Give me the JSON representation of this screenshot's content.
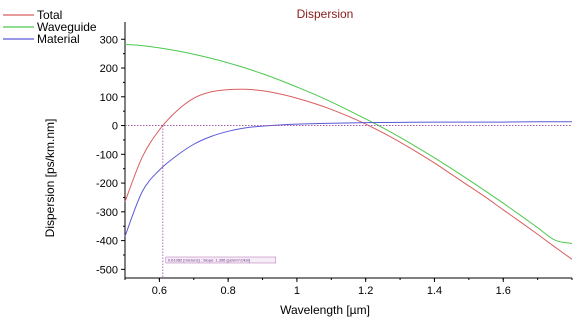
{
  "chart_data": {
    "type": "line",
    "title": "Dispersion",
    "xlabel": "Wavelength [µm]",
    "ylabel": "Dispersion [ps/km.nm]",
    "xlim": [
      0.5,
      1.8
    ],
    "ylim": [
      -530,
      360
    ],
    "x_ticks": [
      0.6,
      0.8,
      1,
      1.2,
      1.4,
      1.6
    ],
    "x_tick_labels": [
      "0.6",
      "0.8",
      "1",
      "1.2",
      "1.4",
      "1.6"
    ],
    "y_ticks": [
      300,
      200,
      100,
      0,
      -100,
      -200,
      -300,
      -400,
      -500
    ],
    "y_tick_labels": [
      "300",
      "200",
      "100",
      "0",
      "-100",
      "-200",
      "-300",
      "-400",
      "-500"
    ],
    "legend_position": "top-left",
    "series": [
      {
        "name": "Total",
        "color": "#d95f5f",
        "x": [
          0.5,
          0.55,
          0.6,
          0.65,
          0.7,
          0.75,
          0.8,
          0.85,
          0.9,
          0.95,
          1.0,
          1.05,
          1.1,
          1.15,
          1.2,
          1.25,
          1.3,
          1.35,
          1.4,
          1.45,
          1.5,
          1.55,
          1.6,
          1.65,
          1.7,
          1.75,
          1.8
        ],
        "y": [
          -265,
          -110,
          -15,
          50,
          95,
          117,
          125,
          126,
          121,
          110,
          95,
          77,
          56,
          32,
          5,
          -25,
          -58,
          -93,
          -130,
          -170,
          -210,
          -250,
          -293,
          -335,
          -378,
          -422,
          -465
        ]
      },
      {
        "name": "Waveguide",
        "color": "#4cc94c",
        "x": [
          0.5,
          0.55,
          0.6,
          0.65,
          0.7,
          0.75,
          0.8,
          0.85,
          0.9,
          0.95,
          1.0,
          1.05,
          1.1,
          1.15,
          1.2,
          1.25,
          1.3,
          1.35,
          1.4,
          1.45,
          1.5,
          1.55,
          1.6,
          1.65,
          1.7,
          1.75,
          1.8
        ],
        "y": [
          282,
          278,
          270,
          260,
          248,
          234,
          218,
          200,
          180,
          158,
          134,
          109,
          82,
          53,
          23,
          -8,
          -41,
          -76,
          -112,
          -150,
          -189,
          -229,
          -270,
          -312,
          -355,
          -398,
          -410
        ]
      },
      {
        "name": "Material",
        "color": "#5a5ad6",
        "x": [
          0.5,
          0.55,
          0.6,
          0.65,
          0.7,
          0.75,
          0.8,
          0.85,
          0.9,
          0.95,
          1.0,
          1.1,
          1.2,
          1.3,
          1.4,
          1.5,
          1.6,
          1.7,
          1.8
        ],
        "y": [
          -385,
          -230,
          -155,
          -105,
          -65,
          -38,
          -20,
          -8,
          -2,
          2,
          5,
          8,
          10,
          11,
          12,
          12,
          12,
          13,
          13
        ]
      }
    ],
    "marker": {
      "x": 0.61,
      "y": 0,
      "label": "0.61082 [microns] ; Slope: 1.396 [ps/nm^2/km]"
    }
  }
}
